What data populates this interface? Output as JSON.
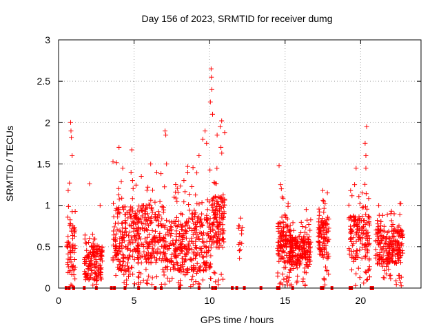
{
  "chart_data": {
    "type": "scatter",
    "title": "Day 156 of 2023, SRMTID for receiver dumg",
    "xlabel": "GPS time / hours",
    "ylabel": "SRMTID / TECUs",
    "xlim": [
      0,
      24
    ],
    "ylim": [
      0,
      3
    ],
    "xticks": [
      0,
      5,
      10,
      15,
      20
    ],
    "yticks": [
      0,
      0.5,
      1,
      1.5,
      2,
      2.5,
      3
    ],
    "xtick_labels": [
      "0",
      "5",
      "10",
      "15",
      "20"
    ],
    "ytick_labels": [
      "0",
      "0.5",
      "1",
      "1.5",
      "2",
      "2.5",
      "3"
    ],
    "grid": true,
    "marker": "plus",
    "series": [
      {
        "name": "SRMTID",
        "color": "#ff0000",
        "clusters": [
          {
            "t0": 0.55,
            "t1": 1.1,
            "base": 0.5,
            "spread": 0.45,
            "n": 70,
            "peak": [
              [
                0.8,
                2.0
              ],
              [
                0.82,
                1.9
              ],
              [
                0.85,
                1.82
              ],
              [
                0.9,
                1.6
              ],
              [
                0.72,
                1.27
              ]
            ]
          },
          {
            "t0": 1.7,
            "t1": 2.9,
            "base": 0.3,
            "spread": 0.3,
            "n": 150,
            "peak": [
              [
                2.05,
                1.26
              ],
              [
                2.75,
                1.0
              ]
            ]
          },
          {
            "t0": 3.6,
            "t1": 5.3,
            "base": 0.6,
            "spread": 0.55,
            "n": 210,
            "peak": [
              [
                4.0,
                1.7
              ],
              [
                4.25,
                1.45
              ],
              [
                4.85,
                1.67
              ],
              [
                4.9,
                1.3
              ],
              [
                4.8,
                1.4
              ]
            ]
          },
          {
            "t0": 5.2,
            "t1": 7.0,
            "base": 0.65,
            "spread": 0.5,
            "n": 210,
            "peak": [
              [
                6.1,
                1.5
              ],
              [
                6.5,
                1.4
              ],
              [
                7.05,
                1.9
              ],
              [
                7.1,
                1.85
              ],
              [
                7.15,
                1.5
              ]
            ]
          },
          {
            "t0": 7.0,
            "t1": 8.5,
            "base": 0.5,
            "spread": 0.45,
            "n": 180,
            "peak": [
              [
                8.55,
                1.47
              ],
              [
                8.55,
                1.4
              ],
              [
                8.3,
                1.3
              ]
            ]
          },
          {
            "t0": 8.5,
            "t1": 10.1,
            "base": 0.55,
            "spread": 0.5,
            "n": 190,
            "peak": [
              [
                9.3,
                1.6
              ],
              [
                9.55,
                1.8
              ],
              [
                9.7,
                1.9
              ],
              [
                9.8,
                1.75
              ],
              [
                10.1,
                2.65
              ],
              [
                10.12,
                2.55
              ],
              [
                10.15,
                2.4
              ],
              [
                10.05,
                2.25
              ],
              [
                10.2,
                2.1
              ]
            ]
          },
          {
            "t0": 10.1,
            "t1": 11.0,
            "base": 0.8,
            "spread": 0.45,
            "n": 130,
            "peak": [
              [
                10.7,
                1.95
              ],
              [
                10.8,
                2.02
              ],
              [
                10.75,
                1.7
              ],
              [
                11.0,
                1.88
              ],
              [
                10.5,
                1.85
              ]
            ]
          },
          {
            "t0": 11.9,
            "t1": 12.2,
            "base": 0.6,
            "spread": 0.25,
            "n": 12,
            "peak": [
              [
                11.98,
                0.36
              ]
            ]
          },
          {
            "t0": 14.5,
            "t1": 15.4,
            "base": 0.55,
            "spread": 0.35,
            "n": 140,
            "peak": [
              [
                14.6,
                1.48
              ],
              [
                14.7,
                1.25
              ],
              [
                14.75,
                1.2
              ],
              [
                14.8,
                1.1
              ]
            ]
          },
          {
            "t0": 15.3,
            "t1": 16.7,
            "base": 0.45,
            "spread": 0.25,
            "n": 210,
            "peak": [
              [
                16.4,
                0.95
              ]
            ]
          },
          {
            "t0": 17.2,
            "t1": 17.9,
            "base": 0.6,
            "spread": 0.35,
            "n": 110,
            "peak": [
              [
                17.5,
                1.18
              ],
              [
                17.8,
                1.15
              ]
            ]
          },
          {
            "t0": 19.2,
            "t1": 20.6,
            "base": 0.6,
            "spread": 0.4,
            "n": 160,
            "peak": [
              [
                20.4,
                1.95
              ],
              [
                20.3,
                1.75
              ],
              [
                20.35,
                1.6
              ],
              [
                19.7,
                1.45
              ],
              [
                20.35,
                1.45
              ],
              [
                19.6,
                1.25
              ],
              [
                20.1,
                1.15
              ]
            ]
          },
          {
            "t0": 21.0,
            "t1": 22.8,
            "base": 0.5,
            "spread": 0.3,
            "n": 240,
            "peak": [
              [
                21.2,
                1.0
              ],
              [
                22.6,
                1.02
              ],
              [
                22.0,
                0.9
              ]
            ]
          }
        ],
        "zero_markers": [
          0.5,
          0.7,
          1.0,
          1.7,
          2.5,
          3.5,
          3.7,
          4.4,
          5.3,
          6.4,
          6.8,
          8.0,
          9.3,
          10.2,
          10.4,
          11.5,
          11.8,
          12.3,
          13.4,
          14.5,
          14.6,
          15.5,
          17.4,
          17.5,
          18.1,
          19.3,
          19.4,
          20.7,
          20.8
        ]
      }
    ]
  }
}
